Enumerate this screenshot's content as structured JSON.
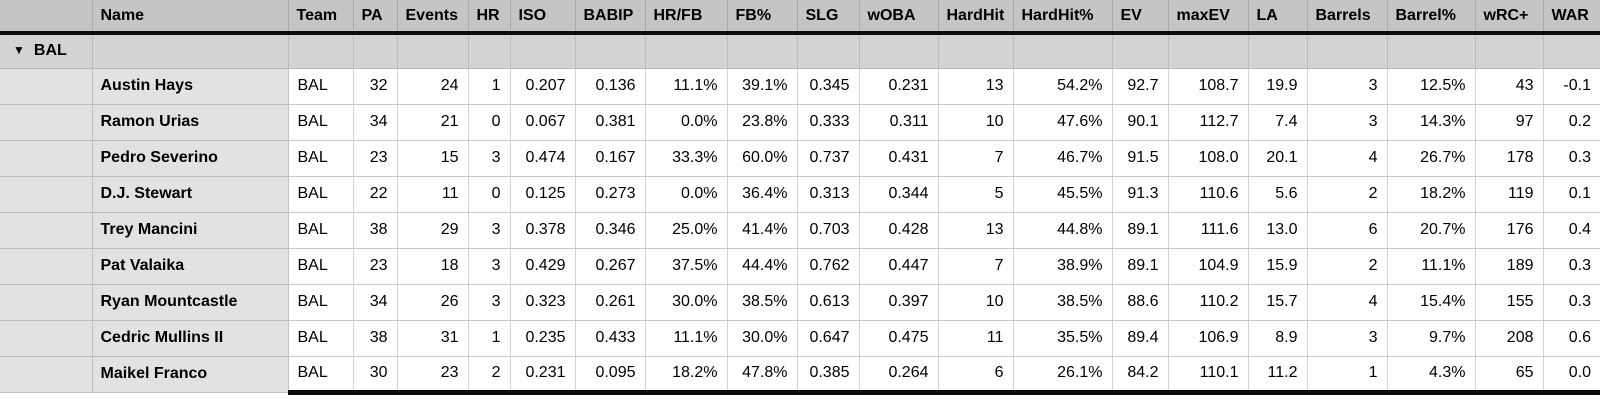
{
  "table": {
    "columns": [
      {
        "key": "rowhead",
        "label": ""
      },
      {
        "key": "name",
        "label": "Name"
      },
      {
        "key": "team",
        "label": "Team"
      },
      {
        "key": "pa",
        "label": "PA"
      },
      {
        "key": "events",
        "label": "Events"
      },
      {
        "key": "hr",
        "label": "HR"
      },
      {
        "key": "iso",
        "label": "ISO"
      },
      {
        "key": "babip",
        "label": "BABIP"
      },
      {
        "key": "hr_fb",
        "label": "HR/FB"
      },
      {
        "key": "fb_pct",
        "label": "FB%"
      },
      {
        "key": "slg",
        "label": "SLG"
      },
      {
        "key": "woba",
        "label": "wOBA"
      },
      {
        "key": "hardhit",
        "label": "HardHit"
      },
      {
        "key": "hardhit_pct",
        "label": "HardHit%"
      },
      {
        "key": "ev",
        "label": "EV"
      },
      {
        "key": "maxev",
        "label": "maxEV"
      },
      {
        "key": "la",
        "label": "LA"
      },
      {
        "key": "barrels",
        "label": "Barrels"
      },
      {
        "key": "barrel_pct",
        "label": "Barrel%"
      },
      {
        "key": "wrc_plus",
        "label": "wRC+"
      },
      {
        "key": "war",
        "label": "WAR"
      }
    ],
    "group": {
      "label": "BAL",
      "collapse_icon": "▼",
      "state": "expanded"
    },
    "rows": [
      {
        "name": "Austin Hays",
        "team": "BAL",
        "pa": "32",
        "events": "24",
        "hr": "1",
        "iso": "0.207",
        "babip": "0.136",
        "hr_fb": "11.1%",
        "fb_pct": "39.1%",
        "slg": "0.345",
        "woba": "0.231",
        "hardhit": "13",
        "hardhit_pct": "54.2%",
        "ev": "92.7",
        "maxev": "108.7",
        "la": "19.9",
        "barrels": "3",
        "barrel_pct": "12.5%",
        "wrc_plus": "43",
        "war": "-0.1"
      },
      {
        "name": "Ramon Urias",
        "team": "BAL",
        "pa": "34",
        "events": "21",
        "hr": "0",
        "iso": "0.067",
        "babip": "0.381",
        "hr_fb": "0.0%",
        "fb_pct": "23.8%",
        "slg": "0.333",
        "woba": "0.311",
        "hardhit": "10",
        "hardhit_pct": "47.6%",
        "ev": "90.1",
        "maxev": "112.7",
        "la": "7.4",
        "barrels": "3",
        "barrel_pct": "14.3%",
        "wrc_plus": "97",
        "war": "0.2"
      },
      {
        "name": "Pedro Severino",
        "team": "BAL",
        "pa": "23",
        "events": "15",
        "hr": "3",
        "iso": "0.474",
        "babip": "0.167",
        "hr_fb": "33.3%",
        "fb_pct": "60.0%",
        "slg": "0.737",
        "woba": "0.431",
        "hardhit": "7",
        "hardhit_pct": "46.7%",
        "ev": "91.5",
        "maxev": "108.0",
        "la": "20.1",
        "barrels": "4",
        "barrel_pct": "26.7%",
        "wrc_plus": "178",
        "war": "0.3"
      },
      {
        "name": "D.J. Stewart",
        "team": "BAL",
        "pa": "22",
        "events": "11",
        "hr": "0",
        "iso": "0.125",
        "babip": "0.273",
        "hr_fb": "0.0%",
        "fb_pct": "36.4%",
        "slg": "0.313",
        "woba": "0.344",
        "hardhit": "5",
        "hardhit_pct": "45.5%",
        "ev": "91.3",
        "maxev": "110.6",
        "la": "5.6",
        "barrels": "2",
        "barrel_pct": "18.2%",
        "wrc_plus": "119",
        "war": "0.1"
      },
      {
        "name": "Trey Mancini",
        "team": "BAL",
        "pa": "38",
        "events": "29",
        "hr": "3",
        "iso": "0.378",
        "babip": "0.346",
        "hr_fb": "25.0%",
        "fb_pct": "41.4%",
        "slg": "0.703",
        "woba": "0.428",
        "hardhit": "13",
        "hardhit_pct": "44.8%",
        "ev": "89.1",
        "maxev": "111.6",
        "la": "13.0",
        "barrels": "6",
        "barrel_pct": "20.7%",
        "wrc_plus": "176",
        "war": "0.4"
      },
      {
        "name": "Pat Valaika",
        "team": "BAL",
        "pa": "23",
        "events": "18",
        "hr": "3",
        "iso": "0.429",
        "babip": "0.267",
        "hr_fb": "37.5%",
        "fb_pct": "44.4%",
        "slg": "0.762",
        "woba": "0.447",
        "hardhit": "7",
        "hardhit_pct": "38.9%",
        "ev": "89.1",
        "maxev": "104.9",
        "la": "15.9",
        "barrels": "2",
        "barrel_pct": "11.1%",
        "wrc_plus": "189",
        "war": "0.3"
      },
      {
        "name": "Ryan Mountcastle",
        "team": "BAL",
        "pa": "34",
        "events": "26",
        "hr": "3",
        "iso": "0.323",
        "babip": "0.261",
        "hr_fb": "30.0%",
        "fb_pct": "38.5%",
        "slg": "0.613",
        "woba": "0.397",
        "hardhit": "10",
        "hardhit_pct": "38.5%",
        "ev": "88.6",
        "maxev": "110.2",
        "la": "15.7",
        "barrels": "4",
        "barrel_pct": "15.4%",
        "wrc_plus": "155",
        "war": "0.3"
      },
      {
        "name": "Cedric Mullins II",
        "team": "BAL",
        "pa": "38",
        "events": "31",
        "hr": "1",
        "iso": "0.235",
        "babip": "0.433",
        "hr_fb": "11.1%",
        "fb_pct": "30.0%",
        "slg": "0.647",
        "woba": "0.475",
        "hardhit": "11",
        "hardhit_pct": "35.5%",
        "ev": "89.4",
        "maxev": "106.9",
        "la": "8.9",
        "barrels": "3",
        "barrel_pct": "9.7%",
        "wrc_plus": "208",
        "war": "0.6"
      },
      {
        "name": "Maikel Franco",
        "team": "BAL",
        "pa": "30",
        "events": "23",
        "hr": "2",
        "iso": "0.231",
        "babip": "0.095",
        "hr_fb": "18.2%",
        "fb_pct": "47.8%",
        "slg": "0.385",
        "woba": "0.264",
        "hardhit": "6",
        "hardhit_pct": "26.1%",
        "ev": "84.2",
        "maxev": "110.1",
        "la": "11.2",
        "barrels": "1",
        "barrel_pct": "4.3%",
        "wrc_plus": "65",
        "war": "0.0"
      }
    ]
  },
  "colors": {
    "header_bg": "#c5c5c6",
    "group_row_bg": "#d3d3d3",
    "frozen_cell_bg": "#e2e2e2",
    "data_cell_bg": "#ffffff",
    "heavy_border": "#0c0c0c",
    "gridline": "#c9c9c9",
    "text": "#000000"
  }
}
